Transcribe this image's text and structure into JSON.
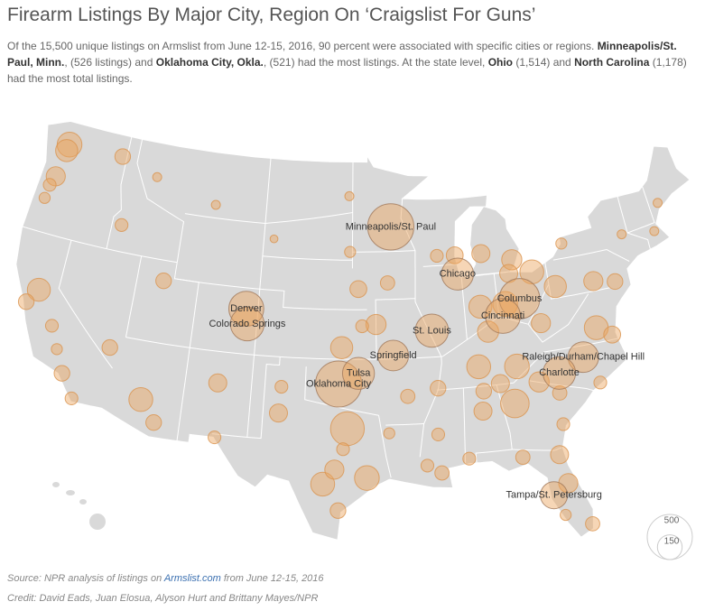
{
  "header": {
    "title": "Firearm Listings By Major City, Region On ‘Craigslist For Guns’",
    "description": [
      {
        "text": "Of the 15,500 unique listings on Armslist from June 12-15, 2016, 90 percent were associated with specific cities or regions. ",
        "bold": false
      },
      {
        "text": "Minneapolis/St. Paul, Minn.",
        "bold": true
      },
      {
        "text": ", (526 listings) and ",
        "bold": false
      },
      {
        "text": "Oklahoma City, Okla.",
        "bold": true
      },
      {
        "text": ", (521) had the most listings. At the state level, ",
        "bold": false
      },
      {
        "text": "Ohio",
        "bold": true
      },
      {
        "text": " (1,514) and ",
        "bold": false
      },
      {
        "text": "North Carolina",
        "bold": true
      },
      {
        "text": " (1,178) had the most total listings.",
        "bold": false
      }
    ]
  },
  "chart_data": {
    "type": "bubble-map",
    "color": "#eba45e",
    "legend": {
      "values": [
        500,
        150
      ]
    },
    "cities": [
      {
        "name": null,
        "lon": -122.3,
        "lat": 47.6,
        "value": 150
      },
      {
        "name": null,
        "lon": -122.4,
        "lat": 47.2,
        "value": 120
      },
      {
        "name": null,
        "lon": -117.4,
        "lat": 47.7,
        "value": 60
      },
      {
        "name": null,
        "lon": -122.7,
        "lat": 45.5,
        "value": 90
      },
      {
        "name": null,
        "lon": -123.0,
        "lat": 44.9,
        "value": 40
      },
      {
        "name": null,
        "lon": -123.1,
        "lat": 44.05,
        "value": 30
      },
      {
        "name": null,
        "lon": -116.2,
        "lat": 43.6,
        "value": 40
      },
      {
        "name": null,
        "lon": -121.5,
        "lat": 38.6,
        "value": 130
      },
      {
        "name": null,
        "lon": -122.2,
        "lat": 37.7,
        "value": 60
      },
      {
        "name": null,
        "lon": -119.8,
        "lat": 36.7,
        "value": 40
      },
      {
        "name": null,
        "lon": -119.0,
        "lat": 35.4,
        "value": 30
      },
      {
        "name": null,
        "lon": -118.2,
        "lat": 34.05,
        "value": 60
      },
      {
        "name": null,
        "lon": -117.1,
        "lat": 32.7,
        "value": 40
      },
      {
        "name": null,
        "lon": -115.1,
        "lat": 36.2,
        "value": 60
      },
      {
        "name": null,
        "lon": -112.1,
        "lat": 33.45,
        "value": 140
      },
      {
        "name": null,
        "lon": -110.9,
        "lat": 32.2,
        "value": 60
      },
      {
        "name": null,
        "lon": -106.6,
        "lat": 35.1,
        "value": 80
      },
      {
        "name": null,
        "lon": -111.9,
        "lat": 40.76,
        "value": 60
      },
      {
        "name": null,
        "lon": -108.5,
        "lat": 45.8,
        "value": 20
      },
      {
        "name": null,
        "lon": -114.0,
        "lat": 46.9,
        "value": 20
      },
      {
        "name": null,
        "lon": -103.2,
        "lat": 44.1,
        "value": 15
      },
      {
        "name": null,
        "lon": -96.8,
        "lat": 46.9,
        "value": 20
      },
      {
        "name": null,
        "lon": -96.7,
        "lat": 43.5,
        "value": 30
      },
      {
        "name": null,
        "lon": -96.0,
        "lat": 41.25,
        "value": 70
      },
      {
        "name": null,
        "lon": -93.6,
        "lat": 41.6,
        "value": 50
      },
      {
        "name": null,
        "lon": -97.3,
        "lat": 37.7,
        "value": 120
      },
      {
        "name": null,
        "lon": -94.6,
        "lat": 39.1,
        "value": 100
      },
      {
        "name": null,
        "lon": -95.7,
        "lat": 39.0,
        "value": 40
      },
      {
        "name": null,
        "lon": -96.8,
        "lat": 32.8,
        "value": 280
      },
      {
        "name": null,
        "lon": -95.4,
        "lat": 29.8,
        "value": 150
      },
      {
        "name": null,
        "lon": -98.5,
        "lat": 29.4,
        "value": 140
      },
      {
        "name": null,
        "lon": -97.7,
        "lat": 30.3,
        "value": 90
      },
      {
        "name": null,
        "lon": -106.4,
        "lat": 31.8,
        "value": 40
      },
      {
        "name": null,
        "lon": -101.9,
        "lat": 33.6,
        "value": 80
      },
      {
        "name": null,
        "lon": -101.8,
        "lat": 35.2,
        "value": 40
      },
      {
        "name": null,
        "lon": -97.4,
        "lat": 27.8,
        "value": 60
      },
      {
        "name": null,
        "lon": -97.1,
        "lat": 31.55,
        "value": 40
      },
      {
        "name": null,
        "lon": -93.75,
        "lat": 32.5,
        "value": 30
      },
      {
        "name": null,
        "lon": -92.3,
        "lat": 34.7,
        "value": 50
      },
      {
        "name": null,
        "lon": -90.0,
        "lat": 35.1,
        "value": 60
      },
      {
        "name": null,
        "lon": -90.2,
        "lat": 32.3,
        "value": 40
      },
      {
        "name": null,
        "lon": -91.1,
        "lat": 30.45,
        "value": 40
      },
      {
        "name": null,
        "lon": -90.1,
        "lat": 29.95,
        "value": 50
      },
      {
        "name": null,
        "lon": -88.1,
        "lat": 30.7,
        "value": 40
      },
      {
        "name": null,
        "lon": -86.8,
        "lat": 36.2,
        "value": 140
      },
      {
        "name": null,
        "lon": -83.9,
        "lat": 35.96,
        "value": 150
      },
      {
        "name": null,
        "lon": -85.3,
        "lat": 35.05,
        "value": 80
      },
      {
        "name": null,
        "lon": -86.6,
        "lat": 34.7,
        "value": 60
      },
      {
        "name": null,
        "lon": -86.8,
        "lat": 33.5,
        "value": 80
      },
      {
        "name": null,
        "lon": -84.4,
        "lat": 33.75,
        "value": 200
      },
      {
        "name": null,
        "lon": -85.8,
        "lat": 38.25,
        "value": 110
      },
      {
        "name": null,
        "lon": -86.2,
        "lat": 39.8,
        "value": 130
      },
      {
        "name": null,
        "lon": -83.2,
        "lat": 42.4,
        "value": 100
      },
      {
        "name": null,
        "lon": -85.7,
        "lat": 43.0,
        "value": 80
      },
      {
        "name": null,
        "lon": -87.9,
        "lat": 43.05,
        "value": 70
      },
      {
        "name": null,
        "lon": -89.4,
        "lat": 43.1,
        "value": 40
      },
      {
        "name": null,
        "lon": -81.7,
        "lat": 41.5,
        "value": 140
      },
      {
        "name": null,
        "lon": -83.6,
        "lat": 41.6,
        "value": 80
      },
      {
        "name": null,
        "lon": -84.2,
        "lat": 39.8,
        "value": 150
      },
      {
        "name": null,
        "lon": -80.0,
        "lat": 40.4,
        "value": 120
      },
      {
        "name": null,
        "lon": -81.6,
        "lat": 38.35,
        "value": 90
      },
      {
        "name": null,
        "lon": -76.9,
        "lat": 40.3,
        "value": 90
      },
      {
        "name": null,
        "lon": -75.2,
        "lat": 40.0,
        "value": 60
      },
      {
        "name": null,
        "lon": -77.4,
        "lat": 37.5,
        "value": 140
      },
      {
        "name": null,
        "lon": -76.3,
        "lat": 36.9,
        "value": 70
      },
      {
        "name": null,
        "lon": -82.4,
        "lat": 34.85,
        "value": 100
      },
      {
        "name": null,
        "lon": -81.0,
        "lat": 34.0,
        "value": 50
      },
      {
        "name": null,
        "lon": -77.9,
        "lat": 34.2,
        "value": 40
      },
      {
        "name": null,
        "lon": -81.1,
        "lat": 32.1,
        "value": 40
      },
      {
        "name": null,
        "lon": -84.3,
        "lat": 30.45,
        "value": 50
      },
      {
        "name": null,
        "lon": -81.7,
        "lat": 30.3,
        "value": 80
      },
      {
        "name": null,
        "lon": -81.4,
        "lat": 28.5,
        "value": 90
      },
      {
        "name": null,
        "lon": -81.9,
        "lat": 26.6,
        "value": 30
      },
      {
        "name": null,
        "lon": -80.2,
        "lat": 25.8,
        "value": 50
      },
      {
        "name": null,
        "lon": -78.9,
        "lat": 42.9,
        "value": 30
      },
      {
        "name": null,
        "lon": -73.8,
        "lat": 42.7,
        "value": 20
      },
      {
        "name": null,
        "lon": -71.1,
        "lat": 42.4,
        "value": 20
      },
      {
        "name": null,
        "lon": -70.2,
        "lat": 44.0,
        "value": 20
      },
      {
        "name": "Minneapolis/St. Paul",
        "lon": -93.2,
        "lat": 45.0,
        "value": 526
      },
      {
        "name": "Chicago",
        "lon": -87.8,
        "lat": 41.9,
        "value": 250
      },
      {
        "name": "Columbus",
        "lon": -83.0,
        "lat": 40.0,
        "value": 400
      },
      {
        "name": "Cincinnati",
        "lon": -84.5,
        "lat": 39.1,
        "value": 300
      },
      {
        "name": "St. Louis",
        "lon": -90.2,
        "lat": 38.6,
        "value": 270
      },
      {
        "name": "Springfield",
        "lon": -93.3,
        "lat": 37.2,
        "value": 230
      },
      {
        "name": "Denver",
        "lon": -104.99,
        "lat": 39.74,
        "value": 300
      },
      {
        "name": "Colorado Springs",
        "lon": -104.8,
        "lat": 38.83,
        "value": 280
      },
      {
        "name": "Oklahoma City",
        "lon": -97.5,
        "lat": 35.5,
        "value": 521
      },
      {
        "name": "Tulsa",
        "lon": -95.99,
        "lat": 36.15,
        "value": 250
      },
      {
        "name": "Raleigh/Durham/Chapel Hill",
        "lon": -78.8,
        "lat": 35.9,
        "value": 230
      },
      {
        "name": "Charlotte",
        "lon": -80.8,
        "lat": 35.2,
        "value": 260
      },
      {
        "name": "Tampa/St. Petersburg",
        "lon": -82.5,
        "lat": 27.9,
        "value": 180
      }
    ]
  },
  "footer": {
    "source": [
      {
        "text": "Source: NPR analysis of listings on ",
        "link": false
      },
      {
        "text": "Armslist.com",
        "link": true
      },
      {
        "text": " from June 12-15, 2016",
        "link": false
      }
    ],
    "credit": "Credit: David Eads, Juan Elosua, Alyson Hurt and Brittany Mayes/NPR"
  }
}
